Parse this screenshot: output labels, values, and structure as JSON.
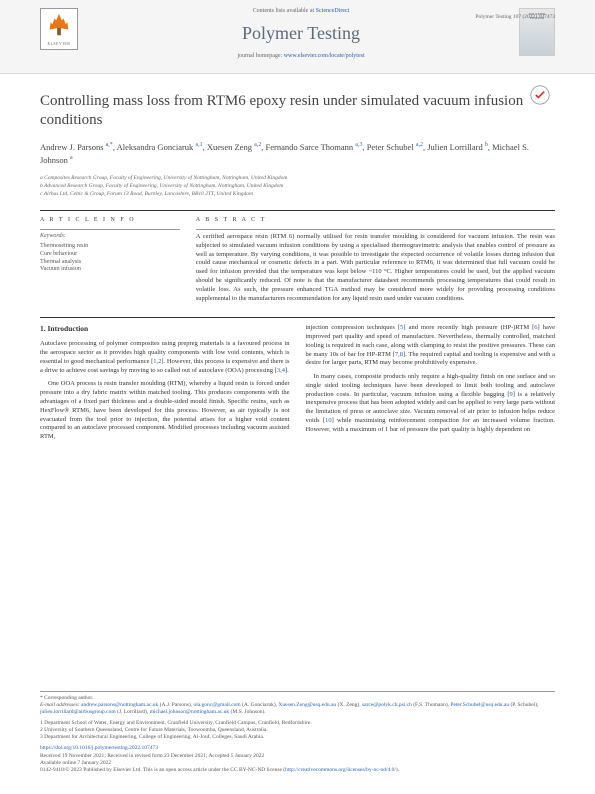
{
  "meta": {
    "citation": "Polymer Testing 107 (2022) 107473"
  },
  "header": {
    "elsevier": "ELSEVIER",
    "contents_prefix": "Contents lists available at ",
    "contents_link": "ScienceDirect",
    "journal_name": "Polymer Testing",
    "homepage_prefix": "journal homepage: ",
    "homepage_link": "www.elsevier.com/locate/polytest",
    "cover_text1": "POLYMER",
    "cover_text2": "TESTING"
  },
  "title": "Controlling mass loss from RTM6 epoxy resin under simulated vacuum infusion conditions",
  "authors_html": "Andrew J. Parsons <sup>a,*</sup>, Aleksandra Gonciaruk <sup>a,1</sup>, Xuesen Zeng <sup>a,2</sup>, Fernando Sarce Thomann <sup>a,3</sup>, Peter Schubel <sup>a,2</sup>, Julien Lorrillard <sup>b</sup>, Michael S. Johnson <sup>a</sup>",
  "affiliations": [
    "a Composites Research Group, Faculty of Engineering, University of Nottingham, Nottingham, United Kingdom",
    "b Advanced Research Group, Faculty of Engineering, University of Nottingham, Nottingham, United Kingdom",
    "c Airbus Ltd, Celtic & Group, Forum 13 Road, Burnley, Lancashire, BB10 2TT, United Kingdom"
  ],
  "article_info": {
    "heading": "A R T I C L E   I N F O",
    "keywords_label": "Keywords:",
    "keywords": [
      "Thermosetting resin",
      "Cure behaviour",
      "Thermal analysis",
      "Vacuum infusion"
    ]
  },
  "abstract": {
    "heading": "A B S T R A C T",
    "text": "A certified aerospace resin (RTM 6) normally utilised for resin transfer moulding is considered for vacuum infusion. The resin was subjected to simulated vacuum infusion conditions by using a specialised thermogravimetric analysis that enables control of pressure as well as temperature. By varying conditions, it was possible to investigate the expected occurrence of volatile losses during infusion that could cause mechanical or cosmetic defects in a part. With particular reference to RTM6, it was determined that full vacuum could be used for infusion provided that the temperature was kept below ~110 °C. Higher temperatures could be used, but the applied vacuum should be significantly reduced. Of note is that the manufacturer datasheet recommends processing temperatures that could result in volatile loss. As such, the pressure enhanced TGA method may be considered more widely for providing processing conditions supplemental to the manufacturers recommendation for any liquid resin used under vacuum conditions."
  },
  "body": {
    "intro_heading": "1. Introduction",
    "col1_p1": "Autoclave processing of polymer composites using prepreg materials is a favoured process in the aerospace sector as it provides high quality components with low void contents, which is essential to good mechanical performance [1,2]. However, this process is expensive and there is a drive to achieve cost savings by moving to so called out of autoclave (OOA) processing [3,4].",
    "col1_p2": "One OOA process is resin transfer moulding (RTM), whereby a liquid resin is forced under pressure into a dry fabric matrix within matched tooling. This produces components with the advantages of a fixed part thickness and a double-sided mould finish. Specific resins, such as HexFlow® RTM6, have been developed for this process. However, as air typically is not evacuated from the tool prior to injection, the potential arises for a higher void content compared to an autoclave processed component. Modified processes including vacuum assisted RTM,",
    "col2_p1": "injection compression techniques [5] and more recently high pressure (HP-)RTM [6] have improved part quality and speed of manufacture. Nevertheless, thermally controlled, matched tooling is required in each case, along with clamping to resist the positive pressures. These can be many 10s of bar for HP-RTM [7,8]. The required capital and tooling is expensive and with a desire for larger parts, RTM may become prohibitively expensive.",
    "col2_p2": "In many cases, composite products only require a high-quality finish on one surface and so single sided tooling techniques have been developed to limit both tooling and autoclave production costs. In particular, vacuum infusion using a flexible bagging [9] is a relatively inexpensive process that has been adopted widely and can be applied to very large parts without the limitation of press or autoclave size. Vacuum removal of air prior to infusion helps reduce voids [10] while maximising reinforcement compaction for an increased volume fraction. However, with a maximum of 1 bar of pressure the part quality is highly dependent on"
  },
  "footer": {
    "corresponding_label": "* Corresponding author.",
    "email_label": "E-mail addresses: ",
    "emails_html": "andrew.parsons@nottingham.ac.uk (A.J. Parsons), ola.gonc@gmail.com (A. Gonciaruk), Xuesen.Zeng@usq.edu.au (X. Zeng), sarce@polyk.ch.psi.ch (F.S. Thomann), Peter.Schubel@usq.edu.au (P. Schubel), julien.lorrillard@airbusgroup.com (J. Lorrillard), michael.johnson@nottingham.ac.uk (M.S. Johnson).",
    "footnotes": [
      "1 Department School of Water, Energy and Environment, Cranfield University, Cranfield Campus, Cranfield, Bedfordshire.",
      "2 University of Southern Queensland, Centre for Future Materials, Toowoomba, Queensland, Australia.",
      "3 Department for Architectural Engineering, College of Engineering, Al-Jouf, Colleges, Saudi Arabia."
    ],
    "doi": "https://doi.org/10.1016/j.polymertesting.2022.107473",
    "received": "Received 19 November 2021; Received in revised form 23 December 2021; Accepted 5 January 2022",
    "available": "Available online 7 January 2022",
    "copyright": "0142-9418/© 2022 Published by Elsevier Ltd. This is an open access article under the CC BY-NC-ND license (http://creativecommons.org/licenses/by-nc-nd/4.0/)."
  }
}
